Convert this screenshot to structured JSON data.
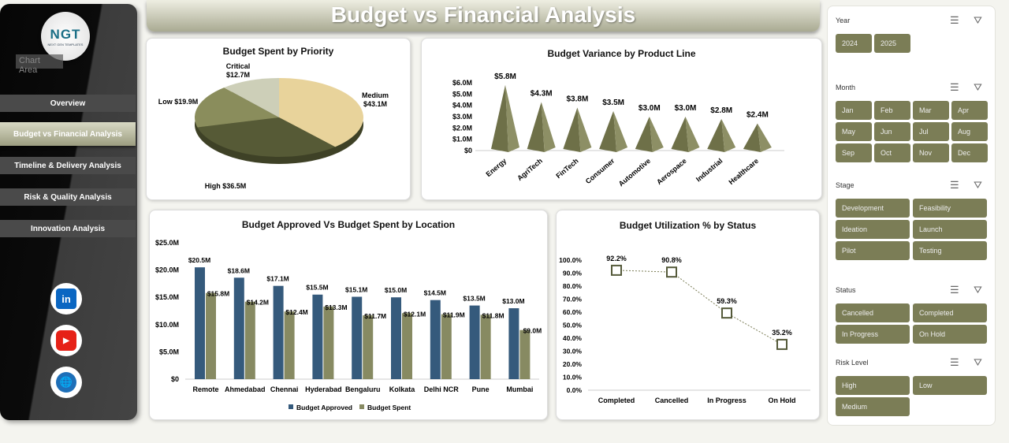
{
  "title": "Budget vs Financial Analysis",
  "sidebar": {
    "logo": "NGT",
    "logo_sub": "NEXT GEN TEMPLATES",
    "chart_area_tooltip": "Chart Area",
    "items": [
      {
        "label": "Overview"
      },
      {
        "label": "Budget vs Financial Analysis",
        "active": true
      },
      {
        "label": "Timeline & Delivery  Analysis"
      },
      {
        "label": "Risk & Quality Analysis"
      },
      {
        "label": "Innovation Analysis"
      }
    ],
    "social": [
      {
        "icon": "linkedin-icon",
        "label": "in",
        "color": "#0a66c2"
      },
      {
        "icon": "youtube-icon",
        "label": "▶",
        "color": "#e62117"
      },
      {
        "icon": "globe-icon",
        "label": "🌐",
        "color": "#1e6fb8"
      }
    ]
  },
  "chart_data": [
    {
      "type": "pie",
      "title": "Budget Spent by Priority",
      "categories": [
        "Medium",
        "High",
        "Low",
        "Critical"
      ],
      "values": [
        43.1,
        36.5,
        19.9,
        12.7
      ],
      "labels": [
        "Medium $43.1M",
        "High $36.5M",
        "Low $19.9M",
        "Critical $12.7M"
      ],
      "colors": [
        "#e8d39b",
        "#565a36",
        "#8a8d5c",
        "#cdcfb8"
      ]
    },
    {
      "type": "bar",
      "title": "Budget Variance by Product Line",
      "categories": [
        "Energy",
        "AgriTech",
        "FinTech",
        "Consumer",
        "Automotive",
        "Aerospace",
        "Industrial",
        "Healthcare"
      ],
      "values": [
        5.8,
        4.3,
        3.8,
        3.5,
        3.0,
        3.0,
        2.8,
        2.4
      ],
      "value_labels": [
        "$5.8M",
        "$4.3M",
        "$3.8M",
        "$3.5M",
        "$3.0M",
        "$3.0M",
        "$2.8M",
        "$2.4M"
      ],
      "ylim": [
        0,
        6
      ],
      "yticks": [
        "$0",
        "$1.0M",
        "$2.0M",
        "$3.0M",
        "$4.0M",
        "$5.0M",
        "$6.0M"
      ],
      "color": "#6e7048"
    },
    {
      "type": "bar",
      "title": "Budget Approved Vs Budget Spent by Location",
      "categories": [
        "Remote",
        "Ahmedabad",
        "Chennai",
        "Hyderabad",
        "Bengaluru",
        "Kolkata",
        "Delhi NCR",
        "Pune",
        "Mumbai"
      ],
      "series": [
        {
          "name": "Budget Approved",
          "values": [
            20.5,
            18.6,
            17.1,
            15.5,
            15.1,
            15.0,
            14.5,
            13.5,
            13.0
          ],
          "color": "#355a7c"
        },
        {
          "name": "Budget Spent",
          "values": [
            15.8,
            14.2,
            12.4,
            13.3,
            11.7,
            12.1,
            11.9,
            11.8,
            9.0
          ],
          "color": "#878a62"
        }
      ],
      "ylim": [
        0,
        25
      ],
      "yticks": [
        "$0",
        "$5.0M",
        "$10.0M",
        "$15.0M",
        "$20.0M",
        "$25.0M"
      ],
      "legend": "bottom"
    },
    {
      "type": "line",
      "title": "Budget Utilization % by Status",
      "categories": [
        "Completed",
        "Cancelled",
        "In Progress",
        "On Hold"
      ],
      "values": [
        92.2,
        90.8,
        59.3,
        35.2
      ],
      "ylim": [
        0,
        100
      ],
      "yticks": [
        "0.0%",
        "10.0%",
        "20.0%",
        "30.0%",
        "40.0%",
        "50.0%",
        "60.0%",
        "70.0%",
        "80.0%",
        "90.0%",
        "100.0%"
      ]
    }
  ],
  "filters": [
    {
      "label": "Year",
      "options": [
        "2024",
        "2025"
      ]
    },
    {
      "label": "Month",
      "options": [
        "Jan",
        "Feb",
        "Mar",
        "Apr",
        "May",
        "Jun",
        "Jul",
        "Aug",
        "Sep",
        "Oct",
        "Nov",
        "Dec"
      ]
    },
    {
      "label": "Stage",
      "options": [
        "Development",
        "Feasibility",
        "Ideation",
        "Launch",
        "Pilot",
        "Testing"
      ]
    },
    {
      "label": "Status",
      "options": [
        "Cancelled",
        "Completed",
        "In Progress",
        "On Hold"
      ]
    },
    {
      "label": "Risk Level",
      "options": [
        "High",
        "Low",
        "Medium"
      ]
    }
  ]
}
